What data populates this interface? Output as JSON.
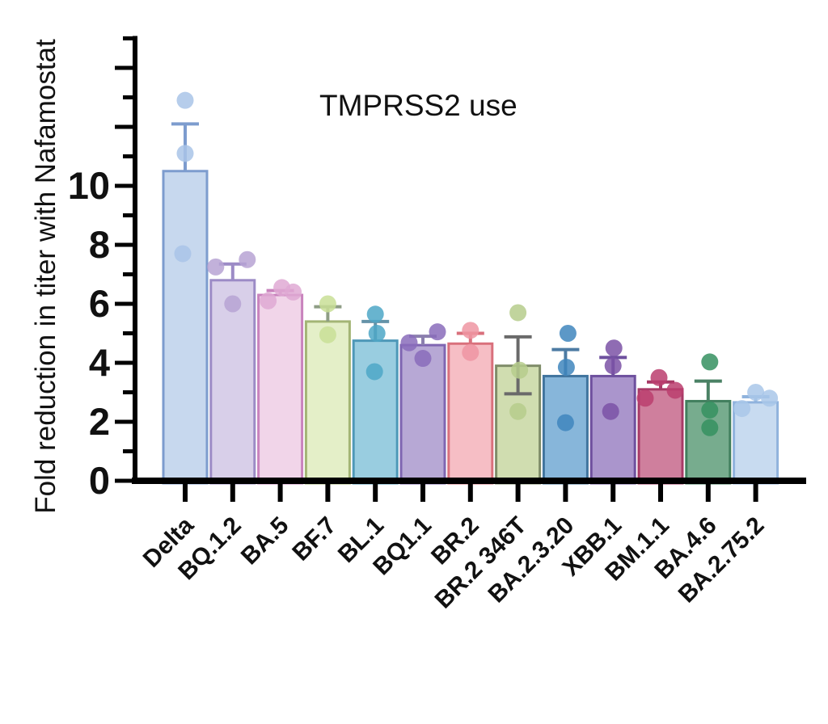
{
  "figure": {
    "title": "TMPRSS2 use",
    "y_axis_label": "Fold reduction in titer with Nafamostat"
  },
  "chart_data": {
    "type": "bar",
    "title": "TMPRSS2 use",
    "xlabel": "",
    "ylabel": "Fold reduction in titer with Nafamostat",
    "ylim": [
      0,
      15
    ],
    "ytick_interval": 1,
    "ylabeled_ticks": [
      0,
      2,
      4,
      6,
      8,
      10
    ],
    "grid": false,
    "legend": "none",
    "error_bar_style": "SEM caps above bar top; BR.2 346T shows caps in both directions",
    "categories": [
      "Delta",
      "BQ.1.2",
      "BA.5",
      "BF.7",
      "BL.1",
      "BQ1.1",
      "BR.2",
      "BR.2 346T",
      "BA.2.3.20",
      "XBB.1",
      "BM.1.1",
      "BA.4.6",
      "BA.2.75.2"
    ],
    "bars": [
      {
        "label": "Delta",
        "mean": 10.5,
        "sem_top": 12.1,
        "sem_bottom": null,
        "points": [
          {
            "value": 12.9,
            "dx": 0
          },
          {
            "value": 11.1,
            "dx": 0
          },
          {
            "value": 7.7,
            "dx": -3
          }
        ],
        "fill": "#c7d8ee",
        "border": "#7d9cce",
        "point_color": "#a9c4e8",
        "error_color": "#7d9cce"
      },
      {
        "label": "BQ.1.2",
        "mean": 6.8,
        "sem_top": 7.35,
        "sem_bottom": null,
        "points": [
          {
            "value": 7.5,
            "dx": 18
          },
          {
            "value": 7.25,
            "dx": -21
          },
          {
            "value": 6.0,
            "dx": 0
          }
        ],
        "fill": "#d8cfe9",
        "border": "#9c8bc6",
        "point_color": "#b7a3d4",
        "error_color": "#9c8bc6"
      },
      {
        "label": "BA.5",
        "mean": 6.3,
        "sem_top": 6.45,
        "sem_bottom": null,
        "points": [
          {
            "value": 6.55,
            "dx": 2
          },
          {
            "value": 6.4,
            "dx": 16
          },
          {
            "value": 6.1,
            "dx": -15
          }
        ],
        "fill": "#f1d5e9",
        "border": "#c983bd",
        "point_color": "#dfa9d3",
        "error_color": "#c983bd"
      },
      {
        "label": "BF.7",
        "mean": 5.4,
        "sem_top": 5.9,
        "sem_bottom": null,
        "points": [
          {
            "value": 6.0,
            "dx": 0
          },
          {
            "value": 4.95,
            "dx": 0
          }
        ],
        "fill": "#e4efc8",
        "border": "#a3b575",
        "point_color": "#c9df97",
        "error_color": "#8e9d85"
      },
      {
        "label": "BL.1",
        "mean": 4.75,
        "sem_top": 5.4,
        "sem_bottom": null,
        "points": [
          {
            "value": 5.65,
            "dx": 0
          },
          {
            "value": 5.0,
            "dx": 2
          },
          {
            "value": 3.7,
            "dx": -1
          }
        ],
        "fill": "#99cde0",
        "border": "#4d98b8",
        "point_color": "#4ea7c7",
        "error_color": "#6593a8"
      },
      {
        "label": "BQ1.1",
        "mean": 4.6,
        "sem_top": 4.9,
        "sem_bottom": null,
        "points": [
          {
            "value": 5.05,
            "dx": 18
          },
          {
            "value": 4.68,
            "dx": -17
          },
          {
            "value": 4.15,
            "dx": 0
          }
        ],
        "fill": "#b7a8d5",
        "border": "#7f66b2",
        "point_color": "#8a6cbb",
        "error_color": "#8b7fae"
      },
      {
        "label": "BR.2",
        "mean": 4.65,
        "sem_top": 5.0,
        "sem_bottom": null,
        "points": [
          {
            "value": 5.1,
            "dx": 0
          },
          {
            "value": 4.35,
            "dx": 0
          }
        ],
        "fill": "#f6bec5",
        "border": "#d9707c",
        "point_color": "#ee95a2",
        "error_color": "#d9707c"
      },
      {
        "label": "BR.2 346T",
        "mean": 3.9,
        "sem_top": 4.88,
        "sem_bottom": 2.95,
        "points": [
          {
            "value": 5.7,
            "dx": 0
          },
          {
            "value": 3.75,
            "dx": 2
          },
          {
            "value": 2.35,
            "dx": 0
          }
        ],
        "fill": "#d0ddb0",
        "border": "#7f8c69",
        "point_color": "#b6cc8c",
        "error_color": "#6a6a6a"
      },
      {
        "label": "BA.2.3.20",
        "mean": 3.55,
        "sem_top": 4.45,
        "sem_bottom": null,
        "points": [
          {
            "value": 5.0,
            "dx": 3
          },
          {
            "value": 3.85,
            "dx": 1
          },
          {
            "value": 1.97,
            "dx": 0
          }
        ],
        "fill": "#87b6da",
        "border": "#40749e",
        "point_color": "#3f86bd",
        "error_color": "#4d7ba3"
      },
      {
        "label": "XBB.1",
        "mean": 3.55,
        "sem_top": 4.18,
        "sem_bottom": null,
        "points": [
          {
            "value": 4.5,
            "dx": 1
          },
          {
            "value": 3.9,
            "dx": 0
          },
          {
            "value": 2.35,
            "dx": -3
          }
        ],
        "fill": "#aa95cc",
        "border": "#6e509e",
        "point_color": "#7b52a6",
        "error_color": "#6e509e"
      },
      {
        "label": "BM.1.1",
        "mean": 3.1,
        "sem_top": 3.35,
        "sem_bottom": null,
        "points": [
          {
            "value": 3.5,
            "dx": -2
          },
          {
            "value": 3.07,
            "dx": 18
          },
          {
            "value": 2.8,
            "dx": -19
          }
        ],
        "fill": "#cf7f9d",
        "border": "#a73a66",
        "point_color": "#bb3e6e",
        "error_color": "#a73a66"
      },
      {
        "label": "BA.4.6",
        "mean": 2.7,
        "sem_top": 3.38,
        "sem_bottom": null,
        "points": [
          {
            "value": 4.03,
            "dx": 2
          },
          {
            "value": 2.4,
            "dx": 2
          },
          {
            "value": 1.8,
            "dx": 2
          }
        ],
        "fill": "#77ac8e",
        "border": "#417f5e",
        "point_color": "#359160",
        "error_color": "#4a8164"
      },
      {
        "label": "BA.2.75.2",
        "mean": 2.66,
        "sem_top": 2.85,
        "sem_bottom": null,
        "points": [
          {
            "value": 3.0,
            "dx": 0
          },
          {
            "value": 2.8,
            "dx": 17
          },
          {
            "value": 2.45,
            "dx": -17
          }
        ],
        "fill": "#c8dbf0",
        "border": "#90b3dd",
        "point_color": "#a9c7e9",
        "error_color": "#90b3dd"
      }
    ],
    "axis_color": "#000000"
  }
}
